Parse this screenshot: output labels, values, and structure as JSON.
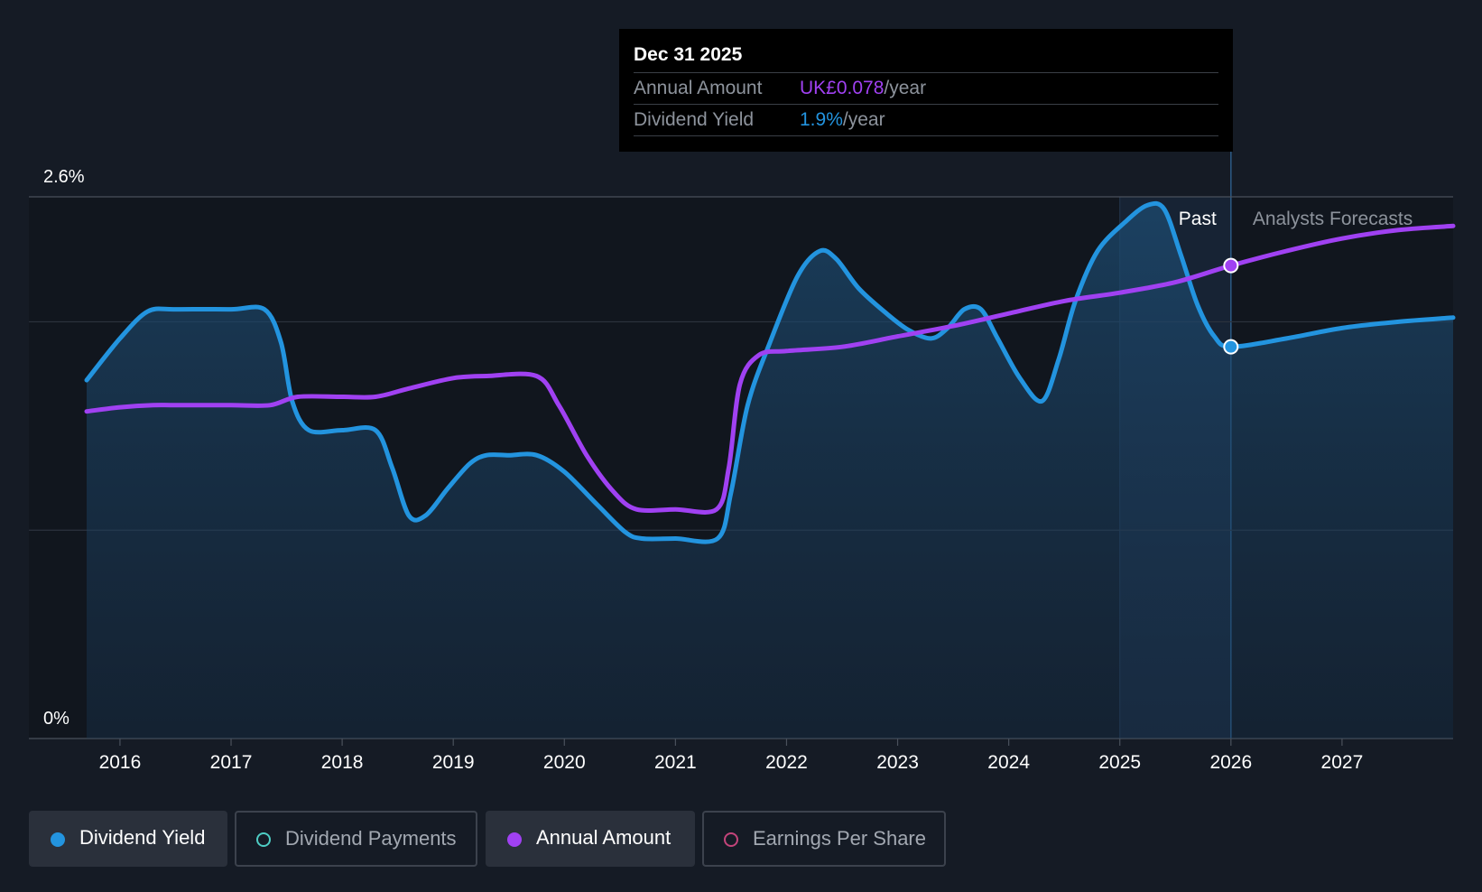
{
  "tooltip": {
    "date": "Dec 31 2025",
    "annual_label": "Annual Amount",
    "annual_value": "UK£0.078",
    "yield_label": "Dividend Yield",
    "yield_value": "1.9%",
    "unit": "/year"
  },
  "legend": {
    "items": [
      {
        "label": "Dividend Yield",
        "color": "#2394df",
        "active": true
      },
      {
        "label": "Dividend Payments",
        "color": "#4ecdc4",
        "active": false
      },
      {
        "label": "Annual Amount",
        "color": "#a041f2",
        "active": true
      },
      {
        "label": "Earnings Per Share",
        "color": "#c3447a",
        "active": false
      }
    ]
  },
  "colors": {
    "background": "#151b25",
    "dividend_yield": "#2394df",
    "annual_amount": "#a041f2",
    "grid": "#2c333e"
  },
  "chart_data": {
    "type": "line",
    "x_ticks": [
      "2016",
      "2017",
      "2018",
      "2019",
      "2020",
      "2021",
      "2022",
      "2023",
      "2024",
      "2025",
      "2026",
      "2027"
    ],
    "y_tick_labels": [
      "0%",
      "2.6%"
    ],
    "ylim": [
      0,
      2.6
    ],
    "xlim": [
      2015.7,
      2028.0
    ],
    "grid": true,
    "region_labels": {
      "past": "Past",
      "forecast": "Analysts Forecasts"
    },
    "past_end": 2026.0,
    "highlight_x": 2026.0,
    "series": [
      {
        "name": "Dividend Yield",
        "color": "#2394df",
        "filled": true,
        "points": [
          [
            2015.7,
            1.72
          ],
          [
            2016.0,
            1.92
          ],
          [
            2016.25,
            2.05
          ],
          [
            2016.5,
            2.06
          ],
          [
            2017.0,
            2.06
          ],
          [
            2017.3,
            2.06
          ],
          [
            2017.45,
            1.9
          ],
          [
            2017.55,
            1.62
          ],
          [
            2017.7,
            1.48
          ],
          [
            2018.0,
            1.48
          ],
          [
            2018.3,
            1.48
          ],
          [
            2018.45,
            1.3
          ],
          [
            2018.6,
            1.07
          ],
          [
            2018.75,
            1.07
          ],
          [
            2018.95,
            1.2
          ],
          [
            2019.15,
            1.32
          ],
          [
            2019.3,
            1.36
          ],
          [
            2019.5,
            1.36
          ],
          [
            2019.75,
            1.36
          ],
          [
            2020.0,
            1.28
          ],
          [
            2020.3,
            1.12
          ],
          [
            2020.55,
            0.99
          ],
          [
            2020.7,
            0.96
          ],
          [
            2021.0,
            0.96
          ],
          [
            2021.38,
            0.96
          ],
          [
            2021.5,
            1.18
          ],
          [
            2021.65,
            1.6
          ],
          [
            2021.85,
            1.9
          ],
          [
            2022.1,
            2.22
          ],
          [
            2022.3,
            2.34
          ],
          [
            2022.45,
            2.3
          ],
          [
            2022.65,
            2.16
          ],
          [
            2022.9,
            2.04
          ],
          [
            2023.1,
            1.96
          ],
          [
            2023.3,
            1.92
          ],
          [
            2023.45,
            1.97
          ],
          [
            2023.6,
            2.06
          ],
          [
            2023.75,
            2.06
          ],
          [
            2023.9,
            1.92
          ],
          [
            2024.1,
            1.73
          ],
          [
            2024.3,
            1.62
          ],
          [
            2024.45,
            1.82
          ],
          [
            2024.6,
            2.1
          ],
          [
            2024.8,
            2.34
          ],
          [
            2025.05,
            2.48
          ],
          [
            2025.25,
            2.56
          ],
          [
            2025.4,
            2.54
          ],
          [
            2025.55,
            2.32
          ],
          [
            2025.7,
            2.08
          ],
          [
            2025.85,
            1.93
          ],
          [
            2026.0,
            1.88
          ],
          [
            2026.5,
            1.92
          ],
          [
            2027.0,
            1.97
          ],
          [
            2027.5,
            2.0
          ],
          [
            2028.0,
            2.02
          ]
        ]
      },
      {
        "name": "Annual Amount",
        "color": "#a041f2",
        "filled": false,
        "points": [
          [
            2015.7,
            1.57
          ],
          [
            2016.0,
            1.59
          ],
          [
            2016.3,
            1.6
          ],
          [
            2016.5,
            1.6
          ],
          [
            2017.0,
            1.6
          ],
          [
            2017.35,
            1.6
          ],
          [
            2017.6,
            1.64
          ],
          [
            2018.0,
            1.64
          ],
          [
            2018.3,
            1.64
          ],
          [
            2018.6,
            1.68
          ],
          [
            2019.0,
            1.73
          ],
          [
            2019.3,
            1.74
          ],
          [
            2019.75,
            1.74
          ],
          [
            2019.95,
            1.6
          ],
          [
            2020.2,
            1.36
          ],
          [
            2020.45,
            1.18
          ],
          [
            2020.65,
            1.1
          ],
          [
            2021.0,
            1.1
          ],
          [
            2021.37,
            1.1
          ],
          [
            2021.48,
            1.3
          ],
          [
            2021.58,
            1.7
          ],
          [
            2021.75,
            1.84
          ],
          [
            2022.0,
            1.86
          ],
          [
            2022.5,
            1.88
          ],
          [
            2023.0,
            1.93
          ],
          [
            2023.5,
            1.98
          ],
          [
            2024.0,
            2.04
          ],
          [
            2024.5,
            2.1
          ],
          [
            2025.0,
            2.14
          ],
          [
            2025.5,
            2.19
          ],
          [
            2026.0,
            2.27
          ],
          [
            2026.5,
            2.34
          ],
          [
            2027.0,
            2.4
          ],
          [
            2027.5,
            2.44
          ],
          [
            2028.0,
            2.46
          ]
        ]
      }
    ]
  }
}
